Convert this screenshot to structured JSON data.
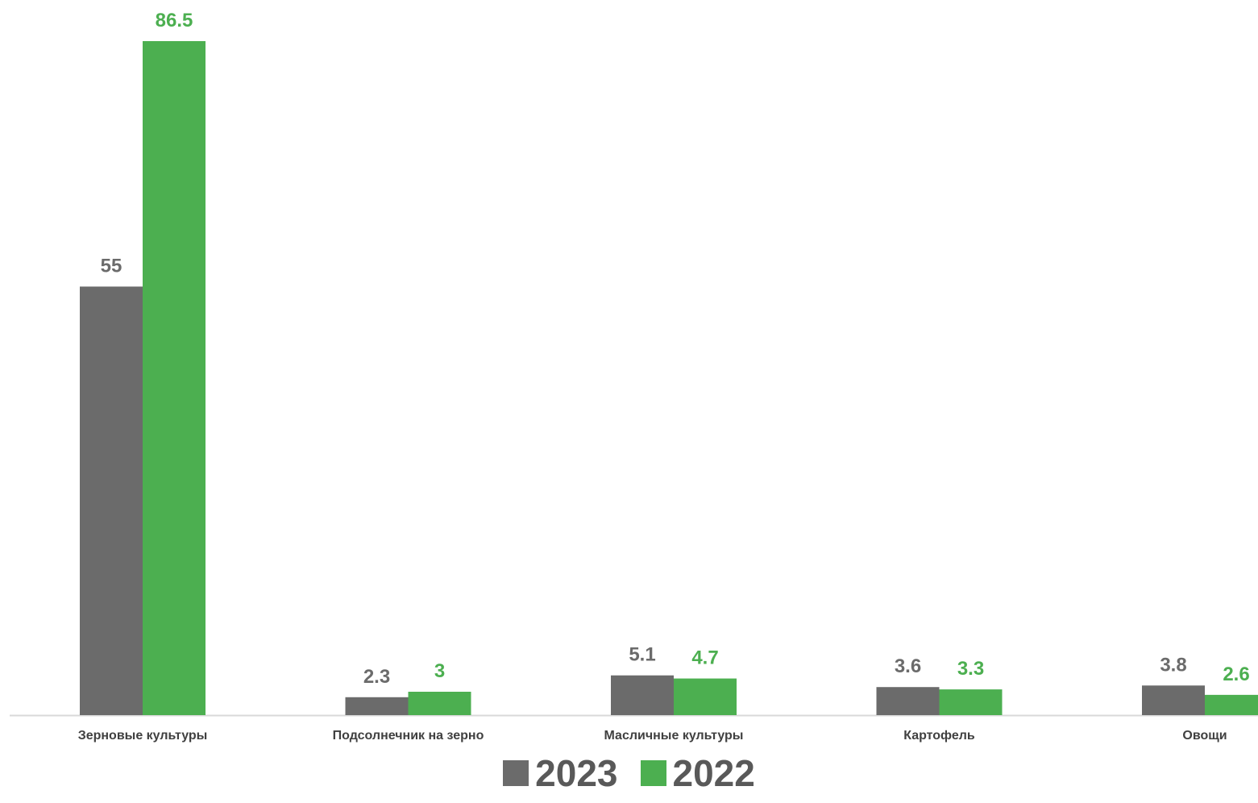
{
  "chart_data": {
    "type": "bar",
    "categories": [
      "Зерновые  культуры",
      "Подсолнечник на зерно",
      "Масличные культуры",
      "Картофель",
      "Овощи"
    ],
    "series": [
      {
        "name": "2023",
        "values": [
          55,
          2.3,
          5.1,
          3.6,
          3.8
        ],
        "color": "#6b6b6b"
      },
      {
        "name": "2022",
        "values": [
          86.5,
          3,
          4.7,
          3.3,
          2.6
        ],
        "color": "#4caf50"
      }
    ],
    "value_labels": [
      [
        "55",
        "2.3",
        "5.1",
        "3.6",
        "3.8"
      ],
      [
        "86.5",
        "3",
        "4.7",
        "3.3",
        "2.6"
      ]
    ],
    "ylim": [
      0,
      86.5
    ],
    "grid": false,
    "legend_position": "bottom",
    "axis_line_color": "#d9d9d9",
    "category_label_color": "#404040",
    "legend_text_color": "#595959"
  }
}
